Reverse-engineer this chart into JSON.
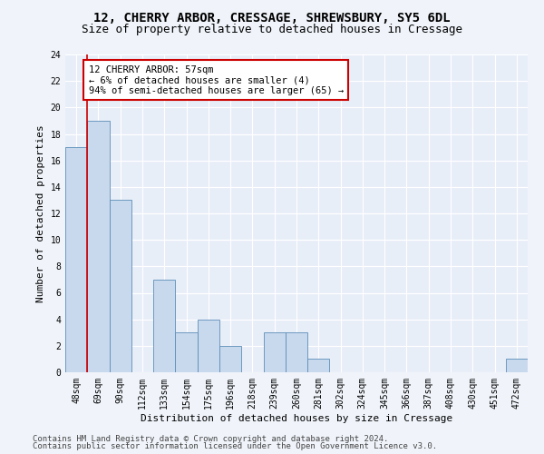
{
  "title_line1": "12, CHERRY ARBOR, CRESSAGE, SHREWSBURY, SY5 6DL",
  "title_line2": "Size of property relative to detached houses in Cressage",
  "xlabel": "Distribution of detached houses by size in Cressage",
  "ylabel": "Number of detached properties",
  "categories": [
    "48sqm",
    "69sqm",
    "90sqm",
    "112sqm",
    "133sqm",
    "154sqm",
    "175sqm",
    "196sqm",
    "218sqm",
    "239sqm",
    "260sqm",
    "281sqm",
    "302sqm",
    "324sqm",
    "345sqm",
    "366sqm",
    "387sqm",
    "408sqm",
    "430sqm",
    "451sqm",
    "472sqm"
  ],
  "values": [
    17,
    19,
    13,
    0,
    7,
    3,
    4,
    2,
    0,
    3,
    3,
    1,
    0,
    0,
    0,
    0,
    0,
    0,
    0,
    0,
    1
  ],
  "bar_color": "#c9d9ed",
  "bar_edge_color": "#5b8db8",
  "annotation_text": "12 CHERRY ARBOR: 57sqm\n← 6% of detached houses are smaller (4)\n94% of semi-detached houses are larger (65) →",
  "annotation_box_color": "#ffffff",
  "annotation_box_edge_color": "#cc0000",
  "vline_color": "#cc0000",
  "vline_x": 0.5,
  "ylim": [
    0,
    24
  ],
  "yticks": [
    0,
    2,
    4,
    6,
    8,
    10,
    12,
    14,
    16,
    18,
    20,
    22,
    24
  ],
  "footer_line1": "Contains HM Land Registry data © Crown copyright and database right 2024.",
  "footer_line2": "Contains public sector information licensed under the Open Government Licence v3.0.",
  "background_color": "#f0f4fa",
  "plot_bg_color": "#e8eef8",
  "grid_color": "#ffffff",
  "title_fontsize": 10,
  "subtitle_fontsize": 9,
  "tick_fontsize": 7,
  "label_fontsize": 8,
  "annot_fontsize": 7.5,
  "footer_fontsize": 6.5
}
